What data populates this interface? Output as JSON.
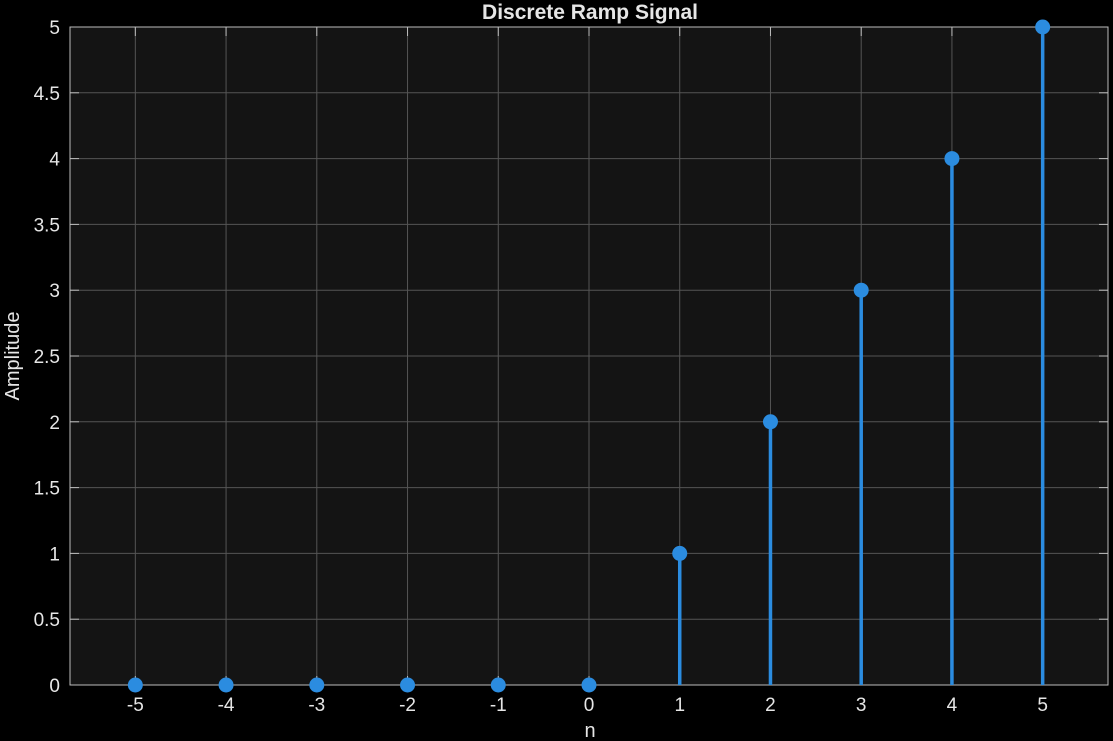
{
  "chart_data": {
    "type": "stem",
    "title": "Discrete Ramp Signal",
    "xlabel": "n",
    "ylabel": "Amplitude",
    "x": [
      -5,
      -4,
      -3,
      -2,
      -1,
      0,
      1,
      2,
      3,
      4,
      5
    ],
    "y": [
      0,
      0,
      0,
      0,
      0,
      0,
      1,
      2,
      3,
      4,
      5
    ],
    "xlim": [
      -5.72,
      5.72
    ],
    "ylim": [
      0,
      5
    ],
    "xticks": [
      "-5",
      "-4",
      "-3",
      "-2",
      "-1",
      "0",
      "1",
      "2",
      "3",
      "4",
      "5"
    ],
    "yticks": [
      "0",
      "0.5",
      "1",
      "1.5",
      "2",
      "2.5",
      "3",
      "3.5",
      "4",
      "4.5",
      "5"
    ],
    "grid": true,
    "colors": {
      "figure_background": "#000000",
      "axes_background": "#141414",
      "axis_line": "#bdbdbd",
      "grid": "#555555",
      "text": "#e6e6e6",
      "series": "#2b8ce0"
    }
  }
}
